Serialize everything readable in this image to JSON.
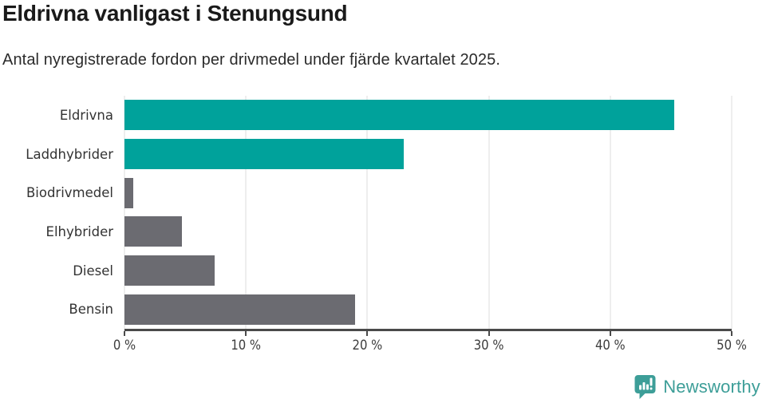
{
  "title": "Eldrivna vanligast i Stenungsund",
  "subtitle": "Antal nyregistrerade fordon per drivmedel under fjärde kvartalet 2025.",
  "chart_data": {
    "type": "bar",
    "orientation": "horizontal",
    "title": "Eldrivna vanligast i Stenungsund",
    "subtitle": "Antal nyregistrerade fordon per drivmedel under fjärde kvartalet 2025.",
    "categories": [
      "Eldrivna",
      "Laddhybrider",
      "Biodrivmedel",
      "Elhybrider",
      "Diesel",
      "Bensin"
    ],
    "values": [
      45.3,
      23.0,
      0.7,
      4.7,
      7.4,
      19.0
    ],
    "unit": "%",
    "xlim": [
      0,
      50
    ],
    "xticks": [
      0,
      10,
      20,
      30,
      40,
      50
    ],
    "xtick_labels": [
      "0 %",
      "10 %",
      "20 %",
      "30 %",
      "40 %",
      "50 %"
    ],
    "bar_colors": [
      "#00a29b",
      "#00a29b",
      "#6b6b71",
      "#6b6b71",
      "#6b6b71",
      "#6b6b71"
    ],
    "highlight_color": "#00a29b",
    "default_color": "#6b6b71",
    "gridline_color": "#dcdcdc",
    "axis_color": "#4a4a4a",
    "grid": true,
    "legend": "none"
  },
  "branding": {
    "logo_text": "Newsworthy",
    "logo_color": "#3d9e98"
  }
}
